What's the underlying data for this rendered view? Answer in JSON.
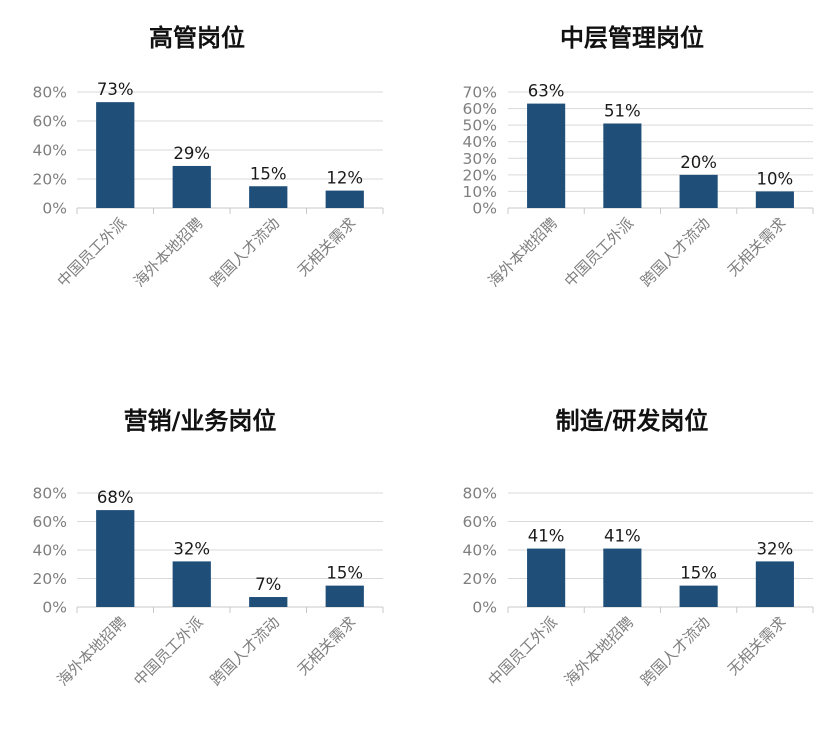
{
  "chart_data": [
    {
      "type": "bar",
      "title": "高管岗位",
      "categories": [
        "中国员工外派",
        "海外本地招聘",
        "跨国人才流动",
        "无相关需求"
      ],
      "values": [
        73,
        29,
        15,
        12
      ],
      "data_labels": [
        "73%",
        "29%",
        "15%",
        "12%"
      ],
      "yticks": [
        "0%",
        "20%",
        "40%",
        "60%",
        "80%"
      ],
      "ylim": [
        0,
        80
      ],
      "grid": true,
      "bar_color": "#1f4e79"
    },
    {
      "type": "bar",
      "title": "中层管理岗位",
      "categories": [
        "海外本地招聘",
        "中国员工外派",
        "跨国人才流动",
        "无相关需求"
      ],
      "values": [
        63,
        51,
        20,
        10
      ],
      "data_labels": [
        "63%",
        "51%",
        "20%",
        "10%"
      ],
      "yticks": [
        "0%",
        "10%",
        "20%",
        "30%",
        "40%",
        "50%",
        "60%",
        "70%"
      ],
      "ylim": [
        0,
        70
      ],
      "grid": true,
      "bar_color": "#1f4e79"
    },
    {
      "type": "bar",
      "title": "营销/业务岗位",
      "categories": [
        "海外本地招聘",
        "中国员工外派",
        "跨国人才流动",
        "无相关需求"
      ],
      "values": [
        68,
        32,
        7,
        15
      ],
      "data_labels": [
        "68%",
        "32%",
        "7%",
        "15%"
      ],
      "yticks": [
        "0%",
        "20%",
        "40%",
        "60%",
        "80%"
      ],
      "ylim": [
        0,
        80
      ],
      "grid": true,
      "bar_color": "#1f4e79"
    },
    {
      "type": "bar",
      "title": "制造/研发岗位",
      "categories": [
        "中国员工外派",
        "海外本地招聘",
        "跨国人才流动",
        "无相关需求"
      ],
      "values": [
        41,
        41,
        15,
        32
      ],
      "data_labels": [
        "41%",
        "41%",
        "15%",
        "32%"
      ],
      "yticks": [
        "0%",
        "20%",
        "40%",
        "60%",
        "80%"
      ],
      "ylim": [
        0,
        80
      ],
      "grid": true,
      "bar_color": "#1f4e79"
    }
  ]
}
